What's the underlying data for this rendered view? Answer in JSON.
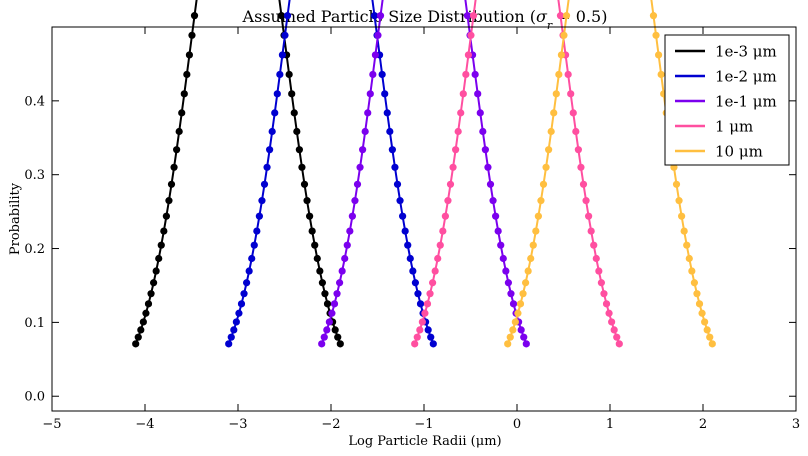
{
  "chart_data": {
    "type": "line",
    "title_prefix": "Assumed Particle Size Distribution (",
    "title_sigma": "σ",
    "title_sub": "r",
    "title_suffix": " = 0.5)",
    "xlabel": "Log Particle Radii (μm)",
    "ylabel": "Probability",
    "xlim": [
      -5,
      3
    ],
    "ylim": [
      -0.02,
      0.5
    ],
    "xticks": [
      "−5",
      "−4",
      "−3",
      "−2",
      "−1",
      "0",
      "1",
      "2",
      "3"
    ],
    "yticks": [
      "0.0",
      "0.1",
      "0.2",
      "0.3",
      "0.4"
    ],
    "grid": false,
    "legend_position": "top-right",
    "sigma": 0.5,
    "x_span": [
      -1.1,
      1.1
    ],
    "points_per_series": 81,
    "series": [
      {
        "name": "1e-3 μm",
        "center": -3,
        "color": "#000000"
      },
      {
        "name": "1e-2 μm",
        "center": -2,
        "color": "#0000d0"
      },
      {
        "name": "1e-1 μm",
        "center": -1,
        "color": "#7b00ee"
      },
      {
        "name": "1 μm",
        "center": 0,
        "color": "#ff4fa0"
      },
      {
        "name": "10 μm",
        "center": 1,
        "color": "#ffbf40"
      }
    ]
  }
}
